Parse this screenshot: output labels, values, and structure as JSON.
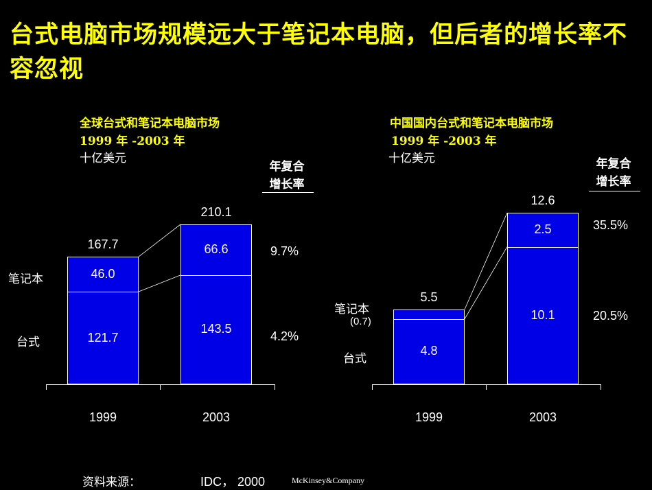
{
  "title": "台式电脑市场规模远大于笔记本电脑，但后者的增长率不容忽视",
  "chart_data": [
    {
      "type": "bar",
      "stacked": true,
      "title": "全球台式和笔记本电脑市场",
      "subtitle": "1999 年 -2003 年",
      "unit": "十亿美元",
      "categories": [
        "1999",
        "2003"
      ],
      "series": [
        {
          "name": "台式",
          "values": [
            121.7,
            143.5
          ],
          "labels": [
            "121.7",
            "143.5"
          ],
          "cagr": "4.2%"
        },
        {
          "name": "笔记本",
          "values": [
            46.0,
            66.6
          ],
          "labels": [
            "46.0",
            "66.6"
          ],
          "cagr": "9.7%"
        }
      ],
      "totals": [
        "167.7",
        "210.1"
      ],
      "cagr_header": [
        "年复合",
        "增长率"
      ],
      "ylim": [
        0,
        210.1
      ]
    },
    {
      "type": "bar",
      "stacked": true,
      "title": "中国国内台式和笔记本电脑市场",
      "subtitle": "1999 年 -2003 年",
      "unit": "十亿美元",
      "categories": [
        "1999",
        "2003"
      ],
      "series": [
        {
          "name": "台式",
          "values": [
            4.8,
            10.1
          ],
          "labels": [
            "4.8",
            "10.1"
          ],
          "cagr": "20.5%"
        },
        {
          "name": "笔记本",
          "values": [
            0.7,
            2.5
          ],
          "labels": [
            "(0.7)",
            "2.5"
          ],
          "cagr": "35.5%"
        }
      ],
      "totals": [
        "5.5",
        "12.6"
      ],
      "cagr_header": [
        "年复合",
        "增长率"
      ],
      "ylim": [
        0,
        12.6
      ]
    }
  ],
  "footer": {
    "source_label": "资料来源：",
    "source_value": "IDC， 2000",
    "logo": "McKinsey&Company"
  },
  "colors": {
    "bar": "#0000e6",
    "title": "#ffff00",
    "background": "#000000"
  }
}
